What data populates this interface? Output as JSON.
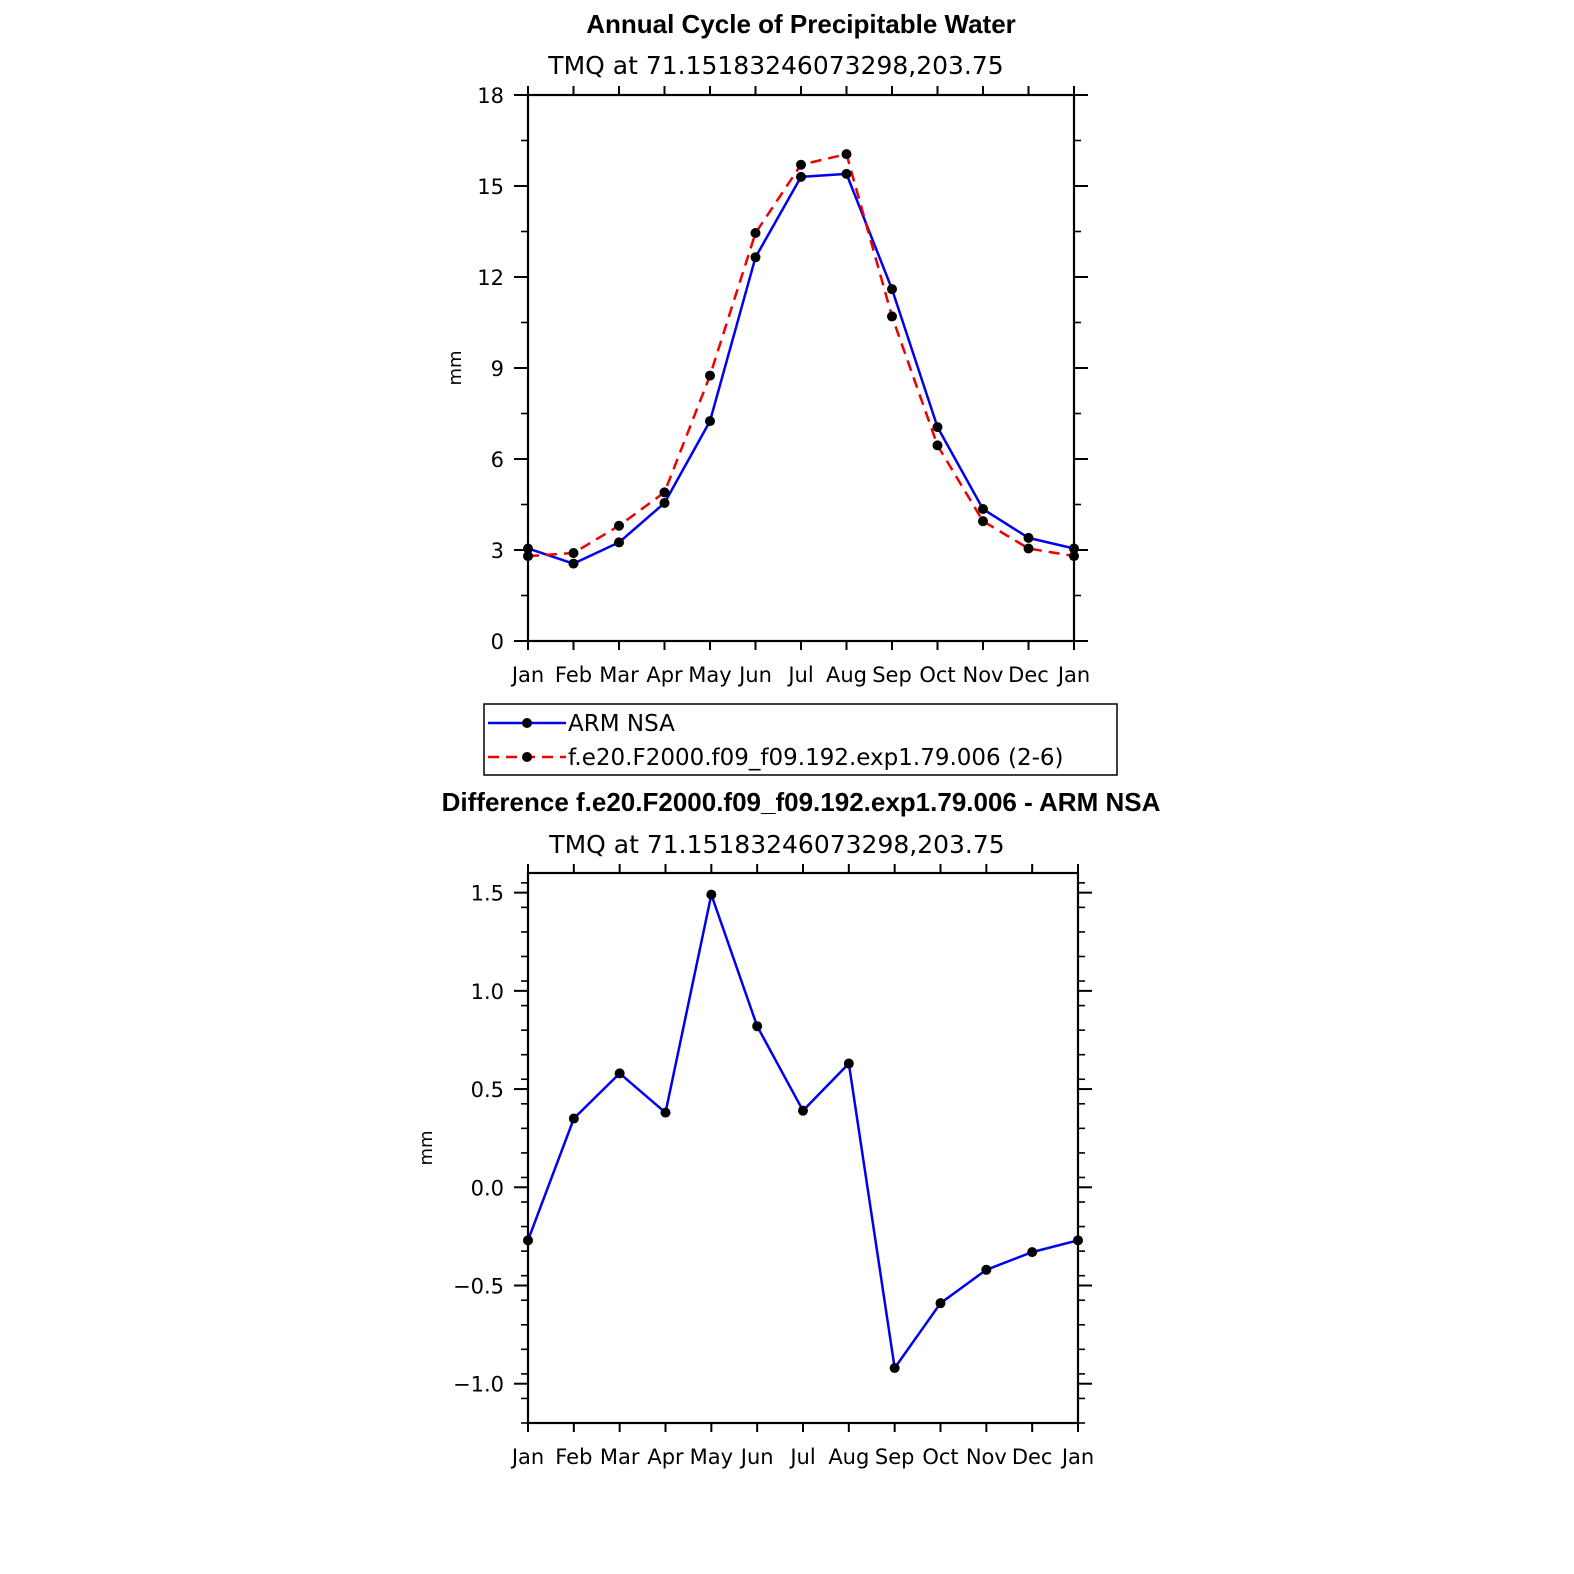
{
  "colors": {
    "obs": "#0000ee",
    "model": "#ee0000",
    "marker": "#000000"
  },
  "chart_data": [
    {
      "type": "line",
      "title": "Annual Cycle of Precipitable Water",
      "subtitle": "TMQ at 71.15183246073298,203.75",
      "ylabel": "mm",
      "xlabel": "",
      "ylim": [
        0,
        18
      ],
      "yticks": [
        0,
        3,
        6,
        9,
        12,
        15,
        18
      ],
      "ytick_labels": [
        "0",
        "3",
        "6",
        "9",
        "12",
        "15",
        "18"
      ],
      "categories": [
        "Jan",
        "Feb",
        "Mar",
        "Apr",
        "May",
        "Jun",
        "Jul",
        "Aug",
        "Sep",
        "Oct",
        "Nov",
        "Dec",
        "Jan"
      ],
      "series": [
        {
          "name": "ARM NSA",
          "style": "solid",
          "color": "#0000ee",
          "values": [
            3.05,
            2.55,
            3.25,
            4.55,
            7.25,
            12.65,
            15.3,
            15.4,
            11.6,
            7.05,
            4.35,
            3.4,
            3.05
          ]
        },
        {
          "name": "f.e20.F2000.f09_f09.192.exp1.79.006 (2-6)",
          "style": "dashed",
          "color": "#ee0000",
          "values": [
            2.8,
            2.9,
            3.8,
            4.9,
            8.75,
            13.45,
            15.7,
            16.05,
            10.7,
            6.45,
            3.95,
            3.05,
            2.8
          ]
        }
      ],
      "legend": {
        "placement": "bottom"
      }
    },
    {
      "type": "line",
      "title": "Difference f.e20.F2000.f09_f09.192.exp1.79.006 - ARM NSA",
      "subtitle": "TMQ at 71.15183246073298,203.75",
      "ylabel": "mm",
      "xlabel": "",
      "ylim": [
        -1.2,
        1.6
      ],
      "yticks": [
        -1.0,
        -0.5,
        0.0,
        0.5,
        1.0,
        1.5
      ],
      "ytick_labels": [
        "−1.0",
        "−0.5",
        "0.0",
        "0.5",
        "1.0",
        "1.5"
      ],
      "categories": [
        "Jan",
        "Feb",
        "Mar",
        "Apr",
        "May",
        "Jun",
        "Jul",
        "Aug",
        "Sep",
        "Oct",
        "Nov",
        "Dec",
        "Jan"
      ],
      "series": [
        {
          "name": "Difference",
          "style": "solid",
          "color": "#0000ee",
          "values": [
            -0.27,
            0.35,
            0.58,
            0.38,
            1.49,
            0.82,
            0.39,
            0.63,
            -0.92,
            -0.59,
            -0.42,
            -0.33,
            -0.27
          ]
        }
      ]
    }
  ]
}
